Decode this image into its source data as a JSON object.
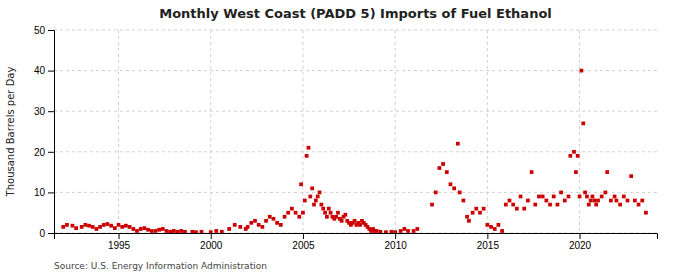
{
  "chart_data": {
    "type": "scatter",
    "title": "Monthly West Coast (PADD 5) Imports of Fuel Ethanol",
    "ylabel": "Thousand Barrels per Day",
    "source": "Source: U.S. Energy Information Administration",
    "color": "#cc0000",
    "marker": "square",
    "grid": true,
    "xlim": [
      1991.5,
      2024.2
    ],
    "ylim": [
      0,
      50
    ],
    "xticks": [
      1995,
      2000,
      2005,
      2010,
      2015,
      2020
    ],
    "yticks": [
      0,
      10,
      20,
      30,
      40,
      50
    ],
    "x": [
      1992.0,
      1992.2,
      1992.5,
      1992.7,
      1993.0,
      1993.2,
      1993.4,
      1993.6,
      1993.8,
      1994.0,
      1994.2,
      1994.4,
      1994.6,
      1994.8,
      1995.0,
      1995.2,
      1995.4,
      1995.6,
      1995.8,
      1996.0,
      1996.2,
      1996.4,
      1996.6,
      1996.8,
      1997.0,
      1997.2,
      1997.4,
      1997.6,
      1997.8,
      1998.0,
      1998.2,
      1998.4,
      1998.6,
      1999.0,
      1999.2,
      1999.5,
      2000.0,
      2000.3,
      2000.6,
      2001.0,
      2001.3,
      2001.6,
      2001.9,
      2002.0,
      2002.2,
      2002.4,
      2002.6,
      2002.8,
      2003.0,
      2003.2,
      2003.4,
      2003.6,
      2003.8,
      2004.0,
      2004.2,
      2004.4,
      2004.6,
      2004.8,
      2004.9,
      2005.0,
      2005.1,
      2005.2,
      2005.3,
      2005.4,
      2005.5,
      2005.6,
      2005.7,
      2005.8,
      2005.9,
      2006.0,
      2006.1,
      2006.2,
      2006.3,
      2006.4,
      2006.5,
      2006.6,
      2006.7,
      2006.8,
      2006.9,
      2007.0,
      2007.1,
      2007.2,
      2007.3,
      2007.4,
      2007.5,
      2007.6,
      2007.7,
      2007.8,
      2007.9,
      2008.0,
      2008.1,
      2008.2,
      2008.3,
      2008.4,
      2008.5,
      2008.6,
      2008.7,
      2008.8,
      2008.9,
      2009.0,
      2009.2,
      2009.5,
      2009.8,
      2010.0,
      2010.3,
      2010.5,
      2010.7,
      2011.0,
      2011.2,
      2012.0,
      2012.2,
      2012.4,
      2012.6,
      2012.8,
      2013.0,
      2013.2,
      2013.4,
      2013.5,
      2013.7,
      2013.9,
      2014.0,
      2014.2,
      2014.4,
      2014.6,
      2014.8,
      2015.0,
      2015.2,
      2015.4,
      2015.6,
      2015.8,
      2016.0,
      2016.2,
      2016.4,
      2016.6,
      2016.8,
      2017.0,
      2017.2,
      2017.4,
      2017.6,
      2017.8,
      2018.0,
      2018.2,
      2018.4,
      2018.6,
      2018.8,
      2019.0,
      2019.2,
      2019.4,
      2019.5,
      2019.7,
      2019.8,
      2019.9,
      2020.0,
      2020.1,
      2020.2,
      2020.3,
      2020.4,
      2020.5,
      2020.6,
      2020.7,
      2020.8,
      2020.9,
      2021.0,
      2021.2,
      2021.4,
      2021.5,
      2021.7,
      2021.9,
      2022.0,
      2022.2,
      2022.4,
      2022.6,
      2022.8,
      2023.0,
      2023.2,
      2023.4,
      2023.6
    ],
    "values": [
      1.5,
      2.0,
      1.8,
      1.2,
      1.5,
      2.0,
      1.8,
      1.5,
      1.0,
      1.5,
      2.0,
      2.2,
      1.8,
      1.2,
      2.0,
      1.5,
      1.8,
      1.5,
      1.0,
      0.5,
      1.0,
      1.2,
      0.8,
      0.5,
      0.5,
      0.8,
      1.0,
      0.5,
      0.3,
      0.5,
      0.3,
      0.5,
      0.3,
      0.3,
      0.2,
      0.3,
      0.2,
      0.5,
      0.3,
      1.0,
      2.0,
      1.5,
      1.0,
      1.5,
      2.5,
      3.0,
      2.0,
      1.5,
      3.0,
      4.0,
      3.5,
      2.5,
      2.0,
      4.0,
      5.0,
      6.0,
      5.0,
      4.0,
      12.0,
      5.0,
      8.0,
      19.0,
      21.0,
      9.0,
      11.0,
      7.0,
      8.0,
      9.0,
      10.0,
      7.0,
      6.0,
      5.0,
      4.0,
      6.0,
      5.0,
      4.0,
      3.5,
      4.0,
      5.0,
      3.5,
      3.0,
      4.0,
      4.5,
      3.0,
      2.5,
      2.0,
      2.5,
      3.0,
      2.0,
      2.5,
      2.0,
      3.0,
      2.5,
      2.0,
      1.5,
      1.0,
      0.5,
      1.0,
      0.5,
      0.5,
      0.3,
      0.2,
      0.3,
      0.2,
      0.5,
      1.0,
      0.5,
      0.5,
      1.0,
      7.0,
      10.0,
      16.0,
      17.0,
      15.0,
      12.0,
      11.0,
      22.0,
      10.0,
      8.0,
      4.0,
      3.0,
      5.0,
      6.0,
      5.0,
      6.0,
      2.0,
      1.5,
      1.0,
      2.0,
      0.5,
      7.0,
      8.0,
      7.0,
      6.0,
      9.0,
      6.0,
      8.0,
      15.0,
      7.0,
      9.0,
      9.0,
      8.0,
      7.0,
      9.0,
      7.0,
      10.0,
      8.0,
      9.0,
      19.0,
      20.0,
      15.0,
      19.0,
      9.0,
      40.0,
      27.0,
      10.0,
      9.0,
      7.0,
      8.0,
      9.0,
      8.0,
      7.0,
      8.0,
      9.0,
      10.0,
      15.0,
      8.0,
      9.0,
      8.0,
      7.0,
      9.0,
      8.0,
      14.0,
      8.0,
      7.0,
      8.0,
      5.0
    ]
  }
}
